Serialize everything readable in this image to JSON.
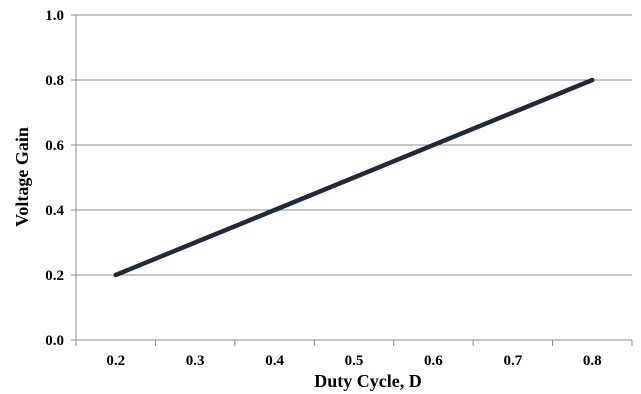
{
  "chart_data": {
    "type": "line",
    "title": "",
    "xlabel": "Duty Cycle, D",
    "ylabel": "Voltage Gain",
    "x": [
      0.2,
      0.3,
      0.4,
      0.5,
      0.6,
      0.7,
      0.8
    ],
    "xticks": [
      "0.2",
      "0.3",
      "0.4",
      "0.5",
      "0.6",
      "0.7",
      "0.8"
    ],
    "series": [
      {
        "values": [
          0.2,
          0.3,
          0.4,
          0.5,
          0.6,
          0.7,
          0.8
        ]
      }
    ],
    "ylim": [
      0.0,
      1.0
    ],
    "yticks": [
      "0.0",
      "0.2",
      "0.4",
      "0.6",
      "0.8",
      "1.0"
    ],
    "ytick_values": [
      0.0,
      0.2,
      0.4,
      0.6,
      0.8,
      1.0
    ],
    "grid": "horizontal",
    "legend": "none",
    "line_color": "#1f2a3a",
    "grid_color": "#8c8c8c"
  }
}
